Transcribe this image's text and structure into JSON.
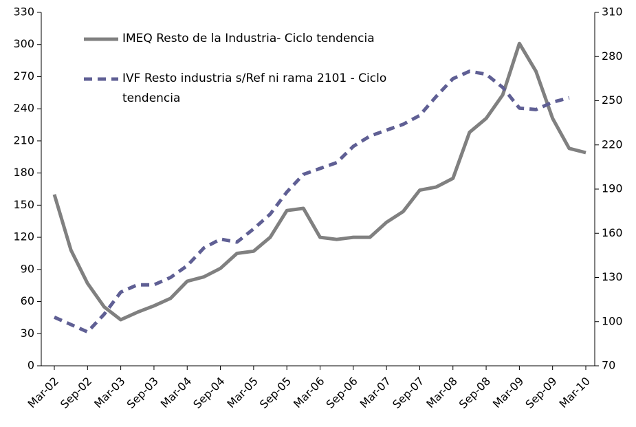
{
  "chart_data": {
    "type": "line",
    "categories": [
      "Mar-02",
      null,
      "Sep-02",
      null,
      "Mar-03",
      null,
      "Sep-03",
      null,
      "Mar-04",
      null,
      "Sep-04",
      null,
      "Mar-05",
      null,
      "Sep-05",
      null,
      "Mar-06",
      null,
      "Sep-06",
      null,
      "Mar-07",
      null,
      "Sep-07",
      null,
      "Mar-08",
      null,
      "Sep-08",
      null,
      "Mar-09",
      null,
      "Sep-09",
      null,
      "Mar-10"
    ],
    "series": [
      {
        "name": "IMEQ Resto de la Industria- Ciclo tendencia",
        "color": "#808080",
        "dash": false,
        "values": [
          160,
          108,
          77,
          55,
          43,
          50,
          56,
          63,
          79,
          83,
          91,
          105,
          107,
          120,
          145,
          147,
          120,
          118,
          120,
          120,
          134,
          144,
          164,
          167,
          175,
          218,
          231,
          253,
          301,
          275,
          231,
          203,
          199
        ]
      },
      {
        "name": "IVF Resto industria s/Ref ni rama 2101 - Ciclo tendencia",
        "color": "#5f5f94",
        "dash": true,
        "axis": "y2",
        "values": [
          103,
          98,
          93,
          105,
          120,
          125,
          125,
          130,
          138,
          150,
          156,
          154,
          163,
          173,
          188,
          200,
          204,
          208,
          219,
          226,
          230,
          234,
          240,
          253,
          265,
          270,
          268,
          259,
          245,
          244,
          249,
          252,
          null
        ]
      }
    ],
    "ylim": [
      0,
      330
    ],
    "yticks": [
      0,
      30,
      60,
      90,
      120,
      150,
      180,
      210,
      240,
      270,
      300,
      330
    ],
    "y2lim": [
      70,
      310
    ],
    "y2ticks": [
      70,
      100,
      130,
      160,
      190,
      220,
      250,
      280,
      310
    ]
  }
}
